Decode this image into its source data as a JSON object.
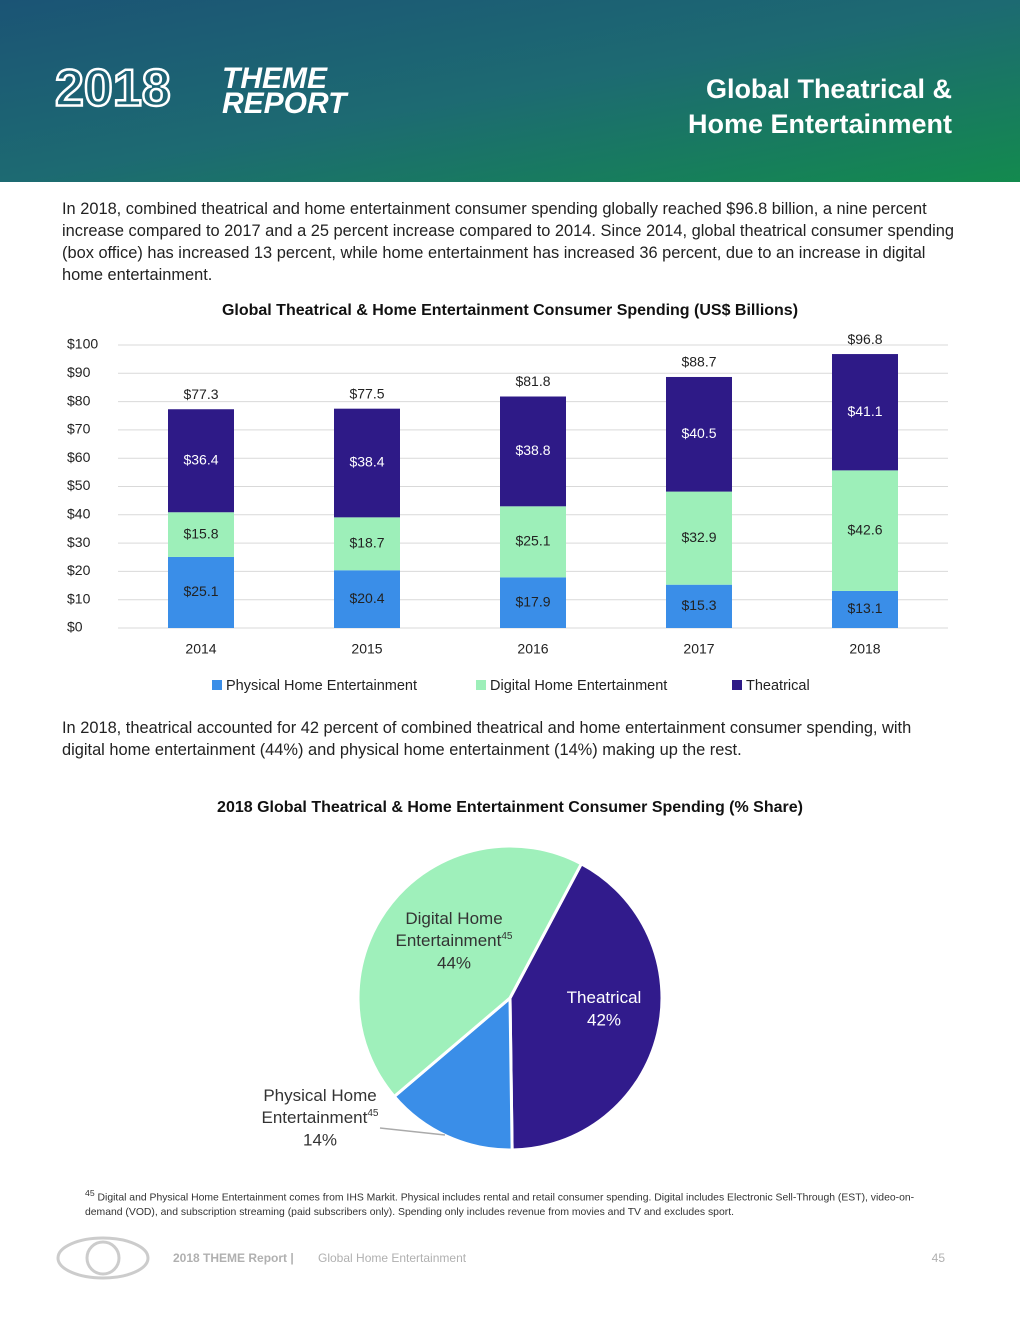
{
  "header": {
    "logo_year": "2018",
    "logo_lines": [
      "THEME",
      "REPORT"
    ],
    "title_lines": [
      "Global Theatrical &",
      "Home Entertainment"
    ]
  },
  "paragraphs": [
    "In 2018, combined theatrical and home entertainment consumer spending globally reached $96.8 billion, a nine percent increase compared to 2017 and a 25 percent increase compared to 2014. Since 2014, global theatrical consumer spending (box office) has increased 13 percent, while home entertainment has increased 36 percent, due to an increase in digital home entertainment.",
    "In 2018, theatrical accounted for 42 percent of combined theatrical and home entertainment consumer spending, with digital home entertainment (44%) and physical home entertainment (14%) making up the rest."
  ],
  "chart_data": [
    {
      "type": "stacked_bar",
      "title": "Global Theatrical & Home Entertainment Consumer Spending (US$ Billions)",
      "categories": [
        "2014",
        "2015",
        "2016",
        "2017",
        "2018"
      ],
      "series": [
        {
          "name": "Physical Home Entertainment",
          "color": "#3a8ee8",
          "values": [
            25.1,
            20.4,
            17.9,
            15.3,
            13.1
          ],
          "value_labels": [
            "$25.1",
            "$20.4",
            "$17.9",
            "$15.3",
            "$13.1"
          ]
        },
        {
          "name": "Digital Home Entertainment",
          "color": "#9defb9",
          "values": [
            15.8,
            18.7,
            25.1,
            32.9,
            42.6
          ],
          "value_labels": [
            "$15.8",
            "$18.7",
            "$25.1",
            "$32.9",
            "$42.6"
          ]
        },
        {
          "name": "Theatrical",
          "color": "#2e1a87",
          "values": [
            36.4,
            38.4,
            38.8,
            40.5,
            41.1
          ],
          "value_labels": [
            "$36.4",
            "$38.4",
            "$38.8",
            "$40.5",
            "$41.1"
          ]
        }
      ],
      "totals": [
        77.3,
        77.5,
        81.8,
        88.7,
        96.8
      ],
      "total_labels": [
        "$77.3",
        "$77.5",
        "$81.8",
        "$88.7",
        "$96.8"
      ],
      "ylim": [
        0,
        100
      ],
      "yticks": [
        {
          "value": 0,
          "label": "$0"
        },
        {
          "value": 10,
          "label": "$10"
        },
        {
          "value": 20,
          "label": "$20"
        },
        {
          "value": 30,
          "label": "$30"
        },
        {
          "value": 40,
          "label": "$40"
        },
        {
          "value": 50,
          "label": "$50"
        },
        {
          "value": 60,
          "label": "$60"
        },
        {
          "value": 70,
          "label": "$70"
        },
        {
          "value": 80,
          "label": "$80"
        },
        {
          "value": 90,
          "label": "$90"
        },
        {
          "value": 100,
          "label": "$100"
        }
      ],
      "grid": true,
      "legend": "bottom"
    },
    {
      "type": "pie",
      "title": "2018 Global Theatrical & Home Entertainment Consumer Spending (% Share)",
      "categories": [
        "Theatrical",
        "Physical Home Entertainment",
        "Digital Home Entertainment"
      ],
      "values": [
        42,
        14,
        44
      ],
      "value_labels": [
        "42%",
        "14%",
        "44%"
      ],
      "colors": [
        "#311b8c",
        "#3a8ee8",
        "#9ff0bb"
      ],
      "footnote_ref": "45"
    }
  ],
  "footnote": {
    "marker": "45",
    "text": "Digital and Physical Home Entertainment comes from IHS Markit. Physical includes rental and retail consumer spending. Digital includes Electronic Sell-Through (EST), video-on-demand (VOD), and subscription streaming (paid subscribers only). Spending only includes revenue from movies and TV and excludes sport."
  },
  "footer": {
    "report": "2018 THEME Report |",
    "section": "Global Home Entertainment",
    "page": "45"
  }
}
